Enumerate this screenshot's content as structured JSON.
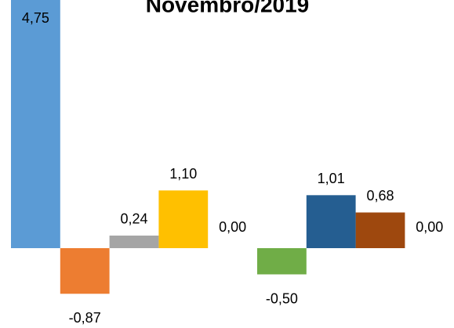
{
  "chart_data": {
    "type": "bar",
    "title": "Novembro/2019",
    "categories": [
      null,
      null,
      null,
      null,
      null,
      null,
      null,
      null,
      null
    ],
    "values": [
      4.75,
      -0.87,
      0.24,
      1.1,
      0.0,
      -0.5,
      1.01,
      0.68,
      0.0
    ],
    "value_labels": [
      "4,75",
      "-0,87",
      "0,24",
      "1,10",
      "0,00",
      "-0,50",
      "1,01",
      "0,68",
      "0,00"
    ],
    "colors": [
      "#5b9bd5",
      "#ed7d31",
      "#a5a5a5",
      "#ffc000",
      "#4472c4",
      "#70ad47",
      "#255e91",
      "#9e480e",
      "#636363"
    ],
    "ylim": [
      -1,
      5
    ]
  }
}
